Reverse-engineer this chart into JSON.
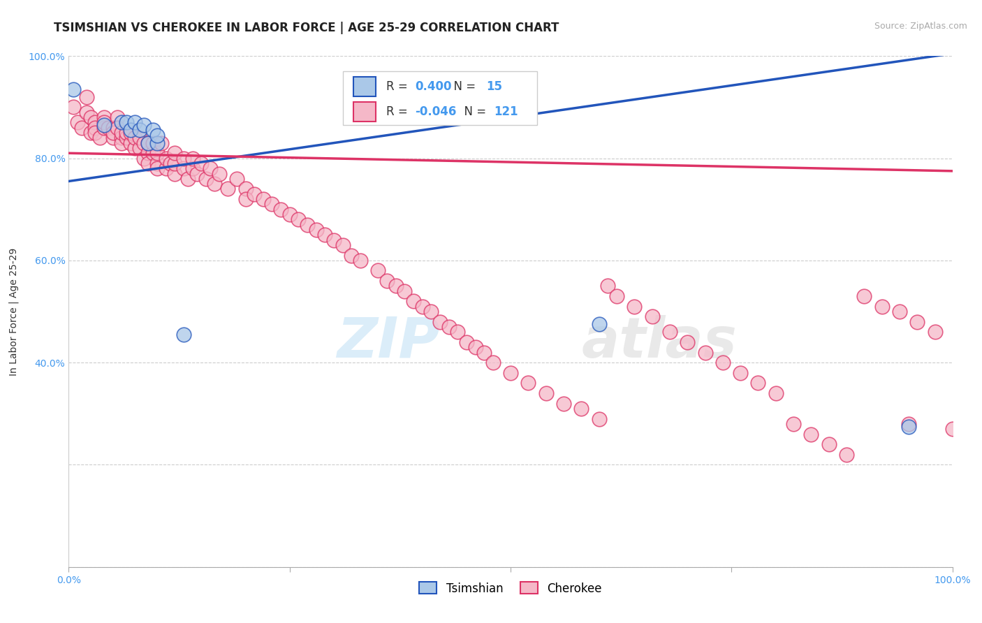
{
  "title": "TSIMSHIAN VS CHEROKEE IN LABOR FORCE | AGE 25-29 CORRELATION CHART",
  "source": "Source: ZipAtlas.com",
  "ylabel": "In Labor Force | Age 25-29",
  "xlim": [
    0.0,
    1.0
  ],
  "ylim": [
    0.0,
    1.0
  ],
  "xticks": [
    0.0,
    0.25,
    0.5,
    0.75,
    1.0
  ],
  "yticks": [
    0.0,
    0.2,
    0.4,
    0.6,
    0.8,
    1.0
  ],
  "xticklabels": [
    "0.0%",
    "",
    "",
    "",
    "100.0%"
  ],
  "yticklabels": [
    "",
    "",
    "40.0%",
    "60.0%",
    "80.0%",
    "100.0%"
  ],
  "legend_r_tsimshian": "0.400",
  "legend_n_tsimshian": "15",
  "legend_r_cherokee": "-0.046",
  "legend_n_cherokee": "121",
  "tsimshian_color": "#aac8e8",
  "cherokee_color": "#f5b8c8",
  "line_tsimshian_color": "#2255bb",
  "line_cherokee_color": "#dd3366",
  "tsimshian_x": [
    0.005,
    0.04,
    0.06,
    0.065,
    0.07,
    0.075,
    0.08,
    0.085,
    0.09,
    0.095,
    0.1,
    0.1,
    0.13,
    0.6,
    0.95
  ],
  "tsimshian_y": [
    0.935,
    0.865,
    0.87,
    0.87,
    0.855,
    0.87,
    0.855,
    0.865,
    0.83,
    0.855,
    0.83,
    0.845,
    0.455,
    0.475,
    0.275
  ],
  "cherokee_x": [
    0.005,
    0.01,
    0.015,
    0.02,
    0.02,
    0.025,
    0.025,
    0.03,
    0.03,
    0.03,
    0.035,
    0.04,
    0.04,
    0.04,
    0.045,
    0.05,
    0.05,
    0.05,
    0.055,
    0.055,
    0.06,
    0.06,
    0.06,
    0.065,
    0.065,
    0.07,
    0.07,
    0.075,
    0.075,
    0.08,
    0.08,
    0.085,
    0.085,
    0.09,
    0.09,
    0.09,
    0.095,
    0.095,
    0.1,
    0.1,
    0.1,
    0.105,
    0.11,
    0.11,
    0.115,
    0.12,
    0.12,
    0.12,
    0.13,
    0.13,
    0.135,
    0.14,
    0.14,
    0.145,
    0.15,
    0.155,
    0.16,
    0.165,
    0.17,
    0.18,
    0.19,
    0.2,
    0.2,
    0.21,
    0.22,
    0.23,
    0.24,
    0.25,
    0.26,
    0.27,
    0.28,
    0.29,
    0.3,
    0.31,
    0.32,
    0.33,
    0.35,
    0.36,
    0.37,
    0.38,
    0.39,
    0.4,
    0.41,
    0.42,
    0.43,
    0.44,
    0.45,
    0.46,
    0.47,
    0.48,
    0.5,
    0.52,
    0.54,
    0.56,
    0.58,
    0.6,
    0.61,
    0.62,
    0.64,
    0.66,
    0.68,
    0.7,
    0.72,
    0.74,
    0.76,
    0.78,
    0.8,
    0.82,
    0.84,
    0.86,
    0.88,
    0.9,
    0.92,
    0.94,
    0.96,
    0.98,
    1.0,
    0.95
  ],
  "cherokee_y": [
    0.9,
    0.87,
    0.86,
    0.89,
    0.92,
    0.88,
    0.85,
    0.87,
    0.86,
    0.85,
    0.84,
    0.88,
    0.86,
    0.87,
    0.86,
    0.86,
    0.84,
    0.85,
    0.88,
    0.86,
    0.84,
    0.83,
    0.85,
    0.84,
    0.85,
    0.83,
    0.85,
    0.82,
    0.84,
    0.82,
    0.84,
    0.8,
    0.83,
    0.81,
    0.83,
    0.79,
    0.81,
    0.83,
    0.79,
    0.81,
    0.78,
    0.83,
    0.78,
    0.8,
    0.79,
    0.77,
    0.79,
    0.81,
    0.78,
    0.8,
    0.76,
    0.78,
    0.8,
    0.77,
    0.79,
    0.76,
    0.78,
    0.75,
    0.77,
    0.74,
    0.76,
    0.74,
    0.72,
    0.73,
    0.72,
    0.71,
    0.7,
    0.69,
    0.68,
    0.67,
    0.66,
    0.65,
    0.64,
    0.63,
    0.61,
    0.6,
    0.58,
    0.56,
    0.55,
    0.54,
    0.52,
    0.51,
    0.5,
    0.48,
    0.47,
    0.46,
    0.44,
    0.43,
    0.42,
    0.4,
    0.38,
    0.36,
    0.34,
    0.32,
    0.31,
    0.29,
    0.55,
    0.53,
    0.51,
    0.49,
    0.46,
    0.44,
    0.42,
    0.4,
    0.38,
    0.36,
    0.34,
    0.28,
    0.26,
    0.24,
    0.22,
    0.53,
    0.51,
    0.5,
    0.48,
    0.46,
    0.27,
    0.28
  ],
  "watermark_zip": "ZIP",
  "watermark_atlas": "atlas",
  "grid_color": "#cccccc",
  "background_color": "#ffffff",
  "title_fontsize": 12,
  "axis_label_fontsize": 10,
  "tick_fontsize": 10,
  "ytick_color": "#4499ee",
  "xtick_color": "#4499ee",
  "source_color": "#aaaaaa",
  "trendline_blue_start_y": 0.755,
  "trendline_blue_end_y": 1.005,
  "trendline_pink_start_y": 0.81,
  "trendline_pink_end_y": 0.775
}
